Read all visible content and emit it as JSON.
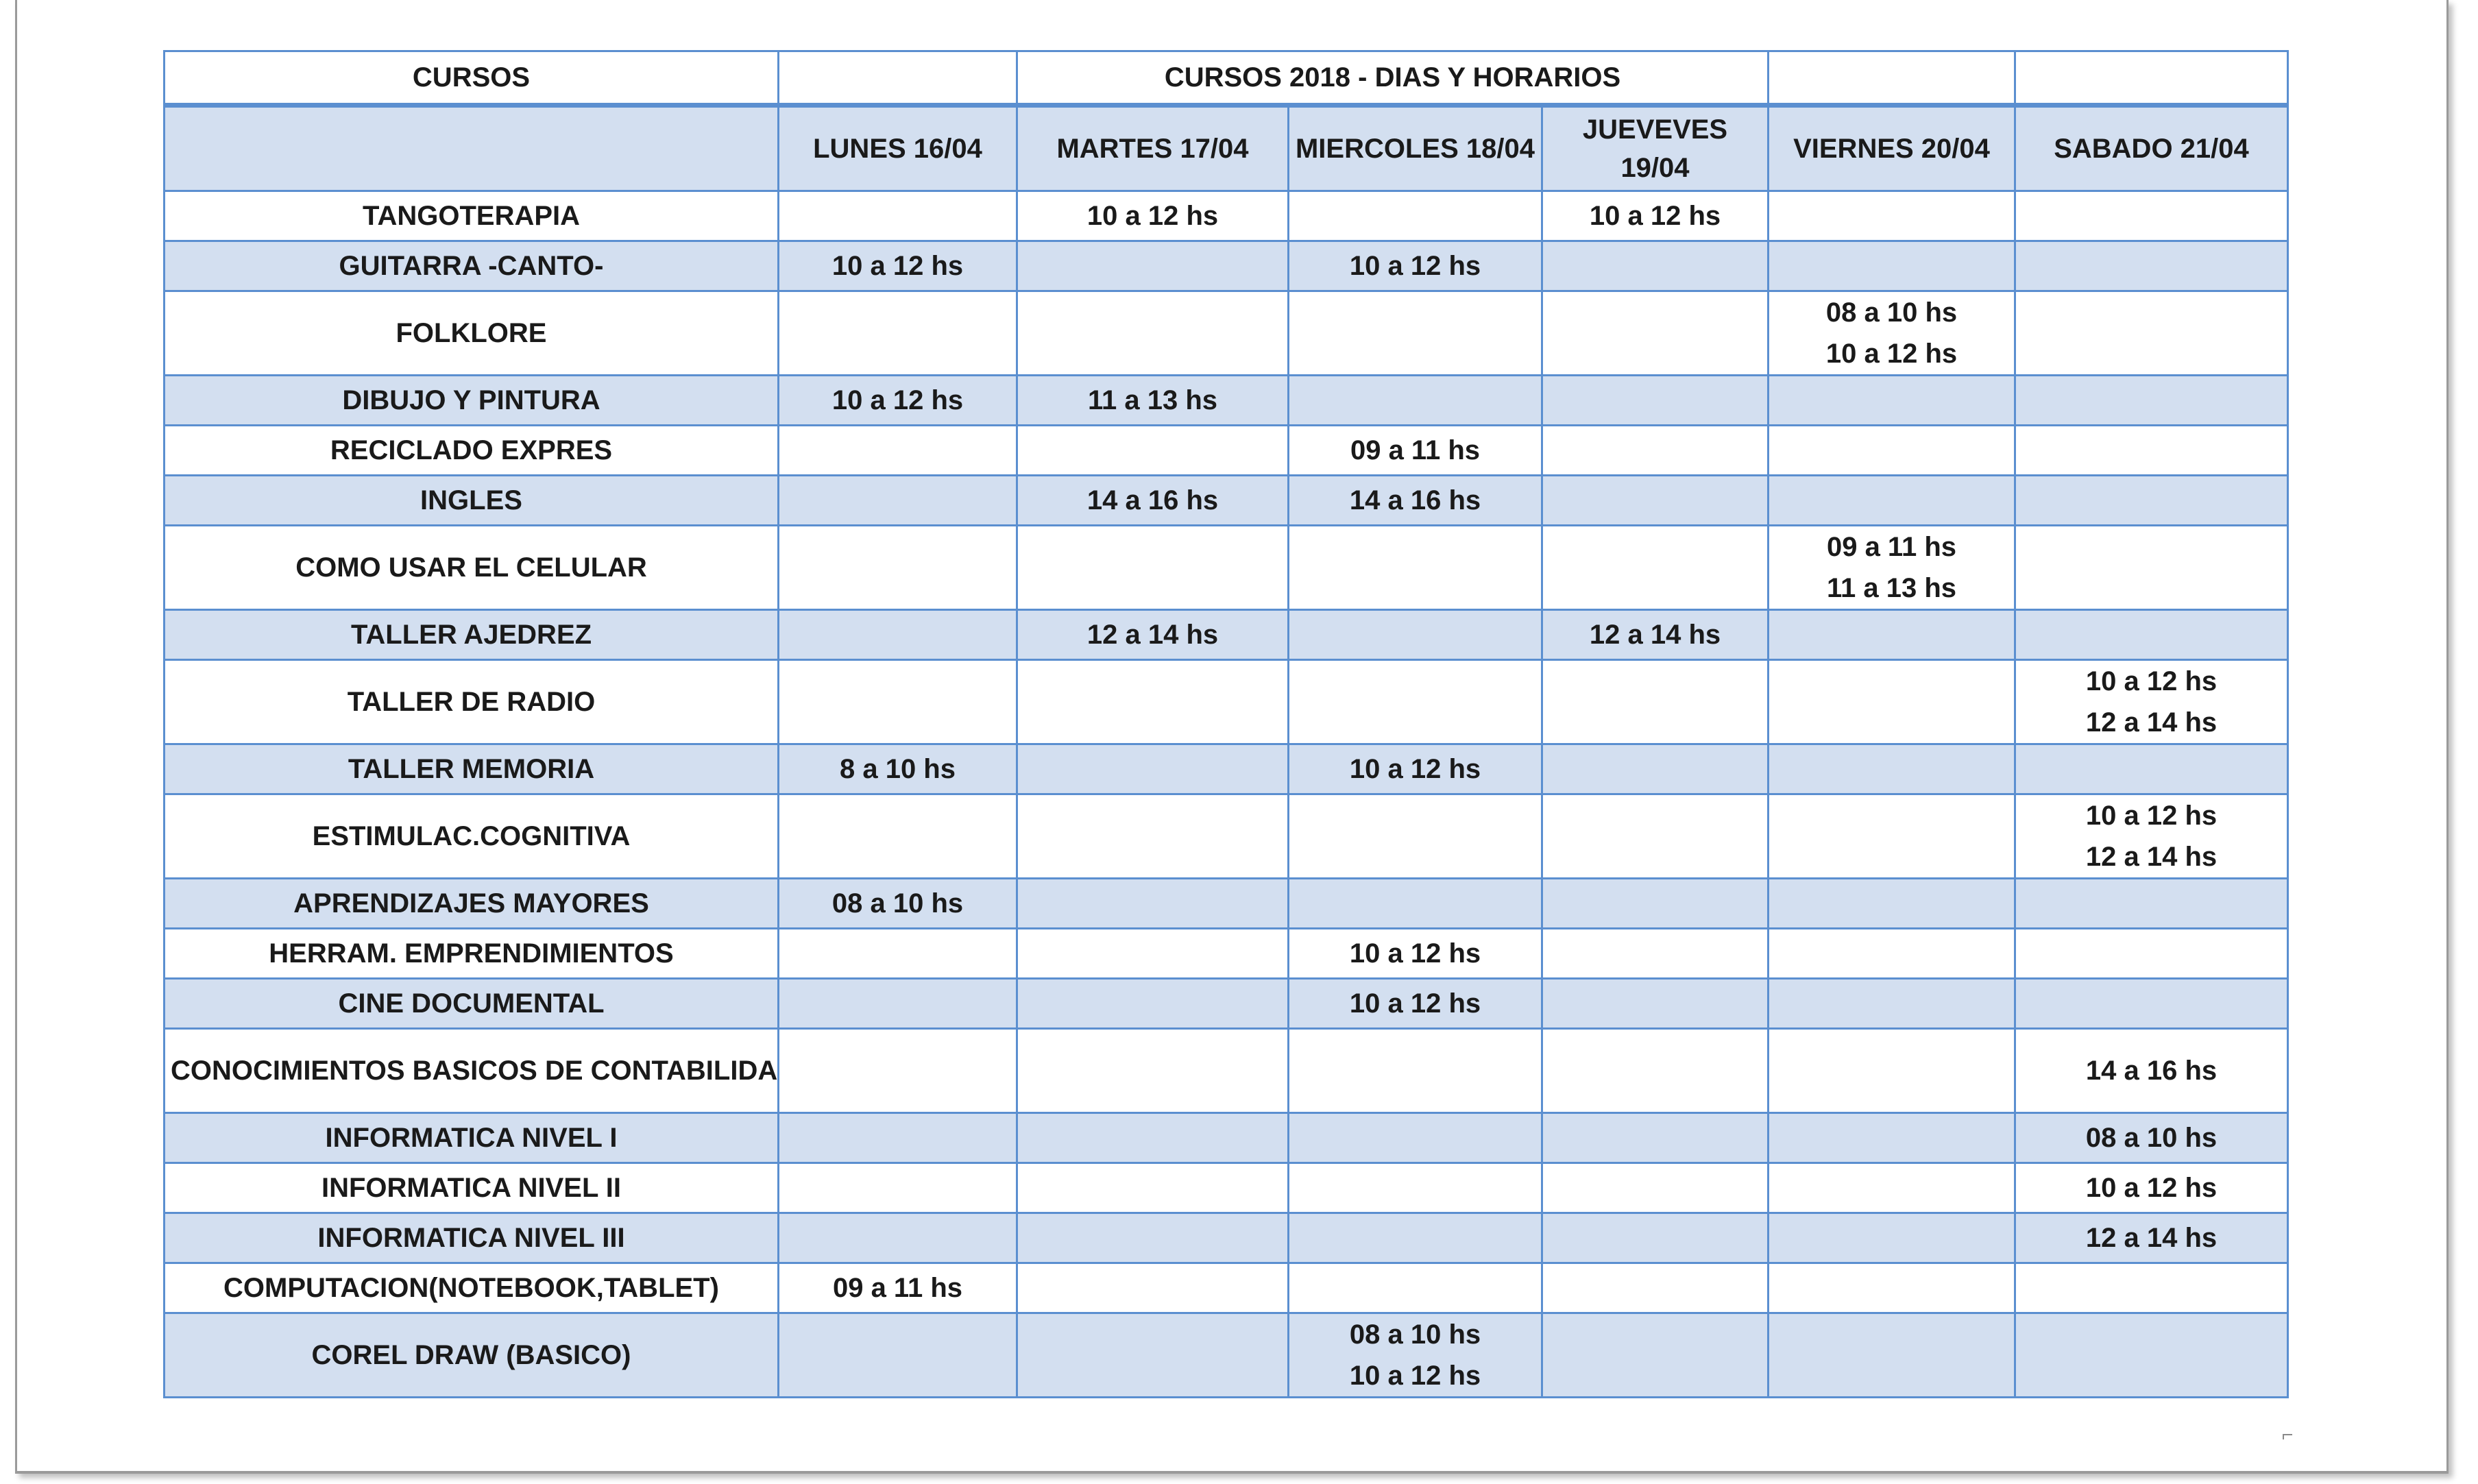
{
  "table": {
    "title_row": [
      "CURSOS",
      "",
      "CURSOS 2018 - DIAS Y HORARIOS",
      "",
      ""
    ],
    "header_row": [
      "",
      "LUNES 16/04",
      "MARTES 17/04",
      "MIERCOLES 18/04",
      "JUEVEVES 19/04",
      "VIERNES 20/04",
      "SABADO 21/04"
    ],
    "rows": [
      {
        "course": "TANGOTERAPIA",
        "cells": [
          "",
          "10 a 12 hs",
          "",
          "10 a 12 hs",
          "",
          ""
        ]
      },
      {
        "course": "GUITARRA -CANTO-",
        "cells": [
          "10 a 12 hs",
          "",
          "10 a 12 hs",
          "",
          "",
          ""
        ]
      },
      {
        "course": "FOLKLORE",
        "cells": [
          "",
          "",
          "",
          "",
          "08 a 10 hs\n10 a 12 hs",
          ""
        ]
      },
      {
        "course": "DIBUJO Y PINTURA",
        "cells": [
          "10 a 12 hs",
          "11 a 13 hs",
          "",
          "",
          "",
          ""
        ]
      },
      {
        "course": "RECICLADO EXPRES",
        "cells": [
          "",
          "",
          "09 a 11 hs",
          "",
          "",
          ""
        ]
      },
      {
        "course": "INGLES",
        "cells": [
          "",
          "14 a 16 hs",
          "14 a 16 hs",
          "",
          "",
          ""
        ]
      },
      {
        "course": "COMO USAR EL CELULAR",
        "cells": [
          "",
          "",
          "",
          "",
          "09 a 11 hs\n11 a 13 hs",
          ""
        ]
      },
      {
        "course": "TALLER AJEDREZ",
        "cells": [
          "",
          "12 a 14 hs",
          "",
          "12 a 14 hs",
          "",
          ""
        ]
      },
      {
        "course": "TALLER DE RADIO",
        "cells": [
          "",
          "",
          "",
          "",
          "",
          "10 a 12 hs\n12 a 14 hs"
        ]
      },
      {
        "course": "TALLER MEMORIA",
        "cells": [
          "8 a 10 hs",
          "",
          "10 a 12 hs",
          "",
          "",
          ""
        ]
      },
      {
        "course": "ESTIMULAC.COGNITIVA",
        "cells": [
          "",
          "",
          "",
          "",
          "",
          "10 a 12 hs\n12 a 14 hs"
        ]
      },
      {
        "course": "APRENDIZAJES MAYORES",
        "cells": [
          "08 a 10 hs",
          "",
          "",
          "",
          "",
          ""
        ]
      },
      {
        "course": "HERRAM. EMPRENDIMIENTOS",
        "cells": [
          "",
          "",
          "10 a 12 hs",
          "",
          "",
          ""
        ]
      },
      {
        "course": "CINE DOCUMENTAL",
        "cells": [
          "",
          "",
          "10 a 12 hs",
          "",
          "",
          ""
        ]
      },
      {
        "course": "CONOCIMIENTOS BASICOS DE CONTABILIDAD",
        "cells": [
          "",
          "",
          "",
          "",
          "",
          "14 a 16 hs"
        ]
      },
      {
        "course": "INFORMATICA NIVEL I",
        "cells": [
          "",
          "",
          "",
          "",
          "",
          "08 a 10 hs"
        ]
      },
      {
        "course": "INFORMATICA NIVEL II",
        "cells": [
          "",
          "",
          "",
          "",
          "",
          "10 a 12 hs"
        ]
      },
      {
        "course": "INFORMATICA NIVEL III",
        "cells": [
          "",
          "",
          "",
          "",
          "",
          "12 a 14 hs"
        ]
      },
      {
        "course": "COMPUTACION(NOTEBOOK,TABLET)",
        "cells": [
          "09 a 11 hs",
          "",
          "",
          "",
          "",
          ""
        ]
      },
      {
        "course": "COREL DRAW (BASICO)",
        "cells": [
          "",
          "",
          "08 a 10 hs\n10 a 12 hs",
          "",
          "",
          ""
        ]
      }
    ]
  },
  "colors": {
    "border": "#5b8fd0",
    "band_fill": "#d3dff0",
    "text": "#1a1a1a"
  }
}
